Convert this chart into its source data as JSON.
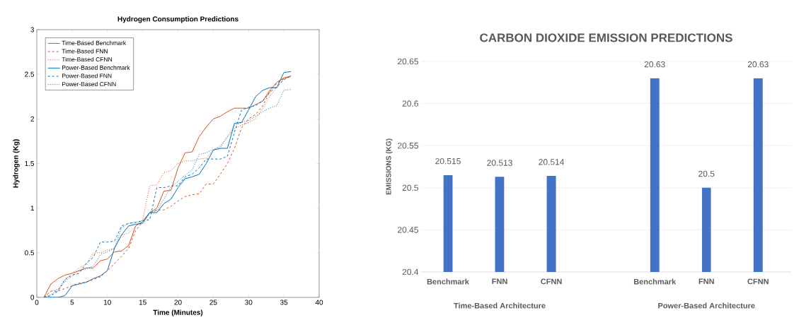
{
  "chart_data": [
    {
      "type": "line",
      "title": "Hydrogen Consumption Predictions",
      "xlabel": "Time (Minutes)",
      "ylabel": "Hydrogen (Kg)",
      "x": [
        1,
        2,
        3,
        4,
        5,
        6,
        7,
        8,
        9,
        10,
        11,
        12,
        13,
        14,
        15,
        16,
        17,
        18,
        19,
        20,
        21,
        22,
        23,
        24,
        25,
        26,
        27,
        28,
        29,
        30,
        31,
        32,
        33,
        34,
        35,
        36
      ],
      "xlim": [
        0,
        40
      ],
      "ylim": [
        0,
        3
      ],
      "xticks": [
        0,
        5,
        10,
        15,
        20,
        25,
        30,
        35,
        40
      ],
      "yticks": [
        0,
        0.5,
        1,
        1.5,
        2,
        2.5,
        3
      ],
      "grid": false,
      "legend": "top left",
      "marker": "none",
      "series": [
        {
          "name": "Time-Based Benchmark",
          "color": "#d95319",
          "line_style": "solid",
          "values": [
            0,
            0.15,
            0.21,
            0.25,
            0.27,
            0.3,
            0.33,
            0.33,
            0.41,
            0.43,
            0.51,
            0.52,
            0.58,
            0.8,
            0.85,
            0.95,
            1.0,
            1.19,
            1.2,
            1.45,
            1.62,
            1.63,
            1.8,
            1.91,
            2.0,
            2.03,
            2.08,
            2.12,
            2.12,
            2.12,
            2.16,
            2.2,
            2.32,
            2.41,
            2.46,
            2.48
          ]
        },
        {
          "name": "Time-Based FNN",
          "color": "#d95319",
          "line_style": "dashed",
          "values": [
            0,
            0.07,
            0.07,
            0.1,
            0.13,
            0.16,
            0.17,
            0.2,
            0.23,
            0.3,
            0.38,
            0.46,
            0.55,
            0.75,
            0.85,
            0.95,
            0.98,
            0.98,
            1.02,
            1.08,
            1.13,
            1.15,
            1.16,
            1.27,
            1.27,
            1.38,
            1.5,
            1.67,
            1.9,
            2.0,
            2.05,
            2.15,
            2.3,
            2.4,
            2.45,
            2.48
          ]
        },
        {
          "name": "Time-Based CFNN",
          "color": "#d95319",
          "line_style": "dotted",
          "values": [
            0,
            0.07,
            0.09,
            0.2,
            0.27,
            0.33,
            0.37,
            0.5,
            0.5,
            0.53,
            0.55,
            0.7,
            0.72,
            0.8,
            0.87,
            1.25,
            1.26,
            1.4,
            1.42,
            1.5,
            1.53,
            1.53,
            1.55,
            1.56,
            1.65,
            1.7,
            1.8,
            1.89,
            1.93,
            1.96,
            2.0,
            2.12,
            2.25,
            2.35,
            2.45,
            2.48
          ]
        },
        {
          "name": "Power-Based Benchmark",
          "color": "#0072bd",
          "line_style": "solid",
          "values": [
            0,
            0,
            0,
            0.02,
            0.13,
            0.15,
            0.17,
            0.21,
            0.24,
            0.3,
            0.55,
            0.7,
            0.8,
            0.82,
            0.83,
            0.95,
            0.95,
            1.05,
            1.1,
            1.23,
            1.33,
            1.35,
            1.38,
            1.5,
            1.65,
            1.67,
            1.67,
            1.95,
            1.96,
            2.1,
            2.25,
            2.32,
            2.35,
            2.35,
            2.52,
            2.53
          ]
        },
        {
          "name": "Power-Based FNN",
          "color": "#0072bd",
          "line_style": "dashed",
          "values": [
            0,
            0.02,
            0.07,
            0.2,
            0.25,
            0.27,
            0.38,
            0.45,
            0.62,
            0.62,
            0.63,
            0.8,
            0.83,
            0.84,
            0.86,
            0.87,
            1.23,
            1.23,
            1.25,
            1.25,
            1.35,
            1.38,
            1.45,
            1.55,
            1.55,
            1.55,
            1.58,
            1.85,
            2.1,
            2.13,
            2.15,
            2.2,
            2.3,
            2.36,
            2.44,
            2.48
          ]
        },
        {
          "name": "Power-Based CFNN",
          "color": "#0072bd",
          "line_style": "dotted",
          "values": [
            0,
            0.03,
            0.08,
            0.18,
            0.24,
            0.3,
            0.32,
            0.35,
            0.48,
            0.51,
            0.55,
            0.78,
            0.83,
            0.84,
            0.86,
            0.95,
            0.97,
            1.1,
            1.24,
            1.3,
            1.37,
            1.43,
            1.6,
            1.62,
            1.66,
            1.68,
            1.8,
            1.93,
            1.96,
            1.98,
            2.03,
            2.08,
            2.12,
            2.15,
            2.32,
            2.33
          ]
        }
      ]
    },
    {
      "type": "bar",
      "title": "CARBON DIOXIDE EMISSION PREDICTIONS",
      "ylabel": "EMISSIONS (KG)",
      "categories": [
        "Benchmark",
        "FNN",
        "CFNN",
        null,
        "Benchmark",
        "FNN",
        "CFNN"
      ],
      "values": [
        20.515,
        20.513,
        20.514,
        null,
        20.63,
        20.5,
        20.63
      ],
      "color": "#4472c4",
      "ylim": [
        20.4,
        20.65
      ],
      "yticks": [
        20.4,
        20.45,
        20.5,
        20.55,
        20.6,
        20.65
      ],
      "grid": "y",
      "data_labels": true,
      "annotations": [
        "Time-Based Architecture",
        "Power-Based Architecture"
      ]
    }
  ]
}
